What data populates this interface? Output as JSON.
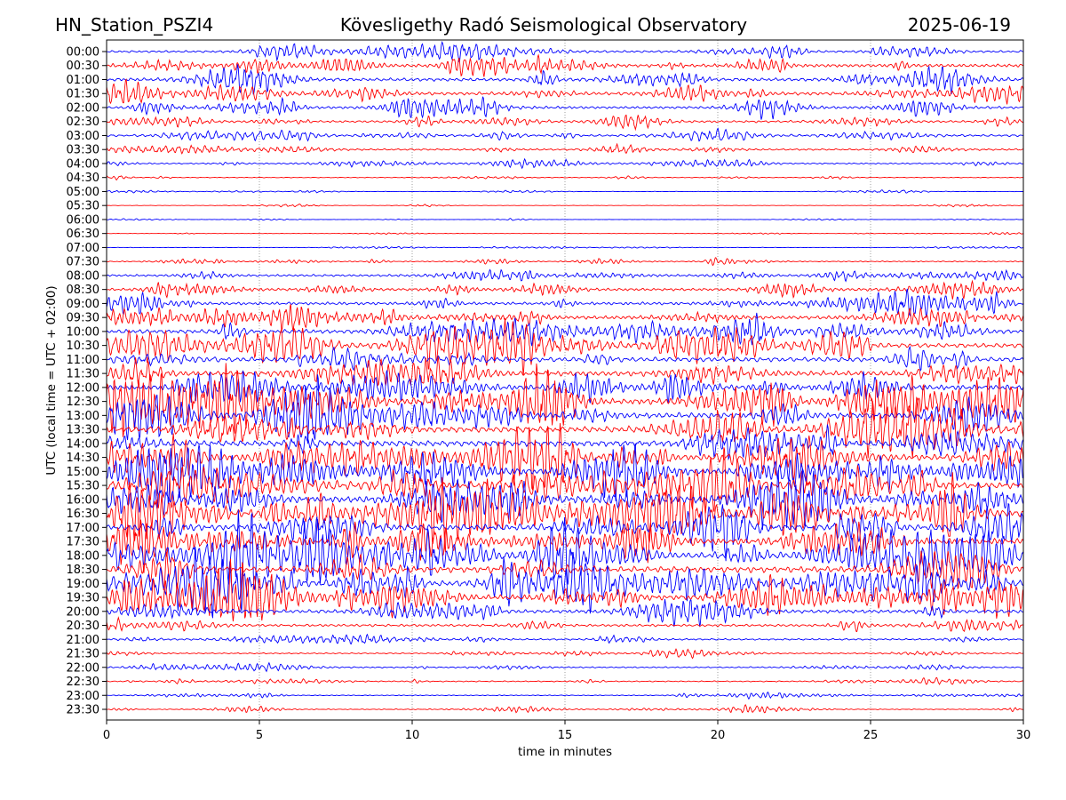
{
  "chart_data": {
    "type": "line",
    "title_left": "HN_Station_PSZI4",
    "title": "Kövesligethy Radó Seismological Observatory",
    "title_right": "2025-06-19",
    "xlabel": "time in minutes",
    "ylabel": "UTC (local time = UTC + 02:00)",
    "xlim": [
      0,
      30
    ],
    "xticks": [
      "0",
      "5",
      "10",
      "15",
      "20",
      "25",
      "30"
    ],
    "grid": "vertical dotted at x ticks",
    "colors": [
      "#0000ff",
      "#ff0000"
    ],
    "rows": [
      "00:00",
      "00:30",
      "01:00",
      "01:30",
      "02:00",
      "02:30",
      "03:00",
      "03:30",
      "04:00",
      "04:30",
      "05:00",
      "05:30",
      "06:00",
      "06:30",
      "07:00",
      "07:30",
      "08:00",
      "08:30",
      "09:00",
      "09:30",
      "10:00",
      "10:30",
      "11:00",
      "11:30",
      "12:00",
      "12:30",
      "13:00",
      "13:30",
      "14:00",
      "14:30",
      "15:00",
      "15:30",
      "16:00",
      "16:30",
      "17:00",
      "17:30",
      "18:00",
      "18:30",
      "19:00",
      "19:30",
      "20:00",
      "20:30",
      "21:00",
      "21:30",
      "22:00",
      "22:30",
      "23:00",
      "23:30"
    ],
    "relative_amplitude": [
      0.33,
      0.5,
      0.5,
      0.5,
      0.4,
      0.33,
      0.33,
      0.27,
      0.2,
      0.1,
      0.07,
      0.05,
      0.05,
      0.05,
      0.07,
      0.17,
      0.33,
      0.4,
      0.45,
      0.55,
      0.62,
      0.7,
      0.75,
      0.8,
      0.82,
      0.87,
      0.87,
      0.93,
      0.93,
      0.93,
      0.95,
      0.95,
      1.0,
      1.0,
      0.95,
      0.95,
      0.95,
      0.93,
      0.87,
      0.8,
      0.55,
      0.38,
      0.25,
      0.18,
      0.2,
      0.16,
      0.13,
      0.13
    ]
  }
}
